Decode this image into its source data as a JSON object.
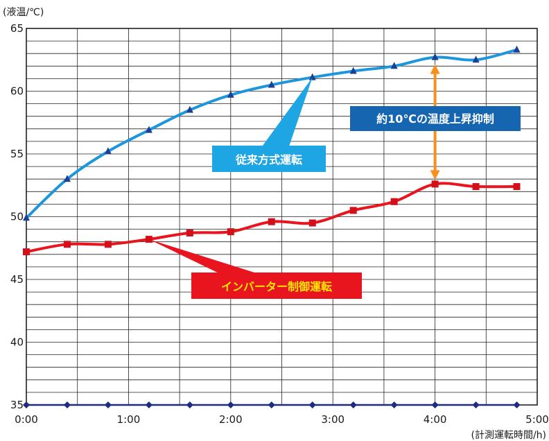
{
  "chart_data": {
    "type": "line",
    "ylabel": "(液温/℃)",
    "xlabel": "(計測運転時間/h)",
    "ylim": [
      35,
      65
    ],
    "xlim": [
      0,
      5
    ],
    "yticks": [
      "35",
      "40",
      "45",
      "50",
      "55",
      "60",
      "65"
    ],
    "xticks": [
      "0:00",
      "1:00",
      "2:00",
      "3:00",
      "4:00",
      "5:00"
    ],
    "grid": true,
    "x": [
      0,
      0.4,
      0.8,
      1.2,
      1.6,
      2.0,
      2.4,
      2.8,
      3.2,
      3.6,
      4.0,
      4.4,
      4.8
    ],
    "series": [
      {
        "name": "従来方式運転",
        "color": "#1e96dc",
        "marker": "triangle",
        "values": [
          49.9,
          53.0,
          55.2,
          56.9,
          58.5,
          59.7,
          60.5,
          61.1,
          61.6,
          62.0,
          62.7,
          62.5,
          63.3
        ]
      },
      {
        "name": "インバーター制御運転",
        "color": "#e8141e",
        "marker": "square",
        "values": [
          47.2,
          47.8,
          47.8,
          48.2,
          48.7,
          48.8,
          49.6,
          49.5,
          50.5,
          51.2,
          52.6,
          52.4,
          52.4
        ]
      },
      {
        "name": "",
        "color": "#1e2b80",
        "marker": "diamond",
        "values": [
          35,
          35,
          35,
          35,
          35,
          35,
          35,
          35,
          35,
          35,
          35,
          35,
          35
        ]
      }
    ],
    "annotations": [
      {
        "text": "約10℃の温度上昇抑制",
        "color": "#1565b0",
        "text_color": "#ffffff"
      },
      {
        "text": "従来方式運転",
        "color": "#1ea6e4",
        "text_color": "#ffffff"
      },
      {
        "text": "インバーター制御運転",
        "color": "#e8141e",
        "text_color": "#ffe600"
      }
    ],
    "difference_arrow_color": "#f5901e"
  }
}
